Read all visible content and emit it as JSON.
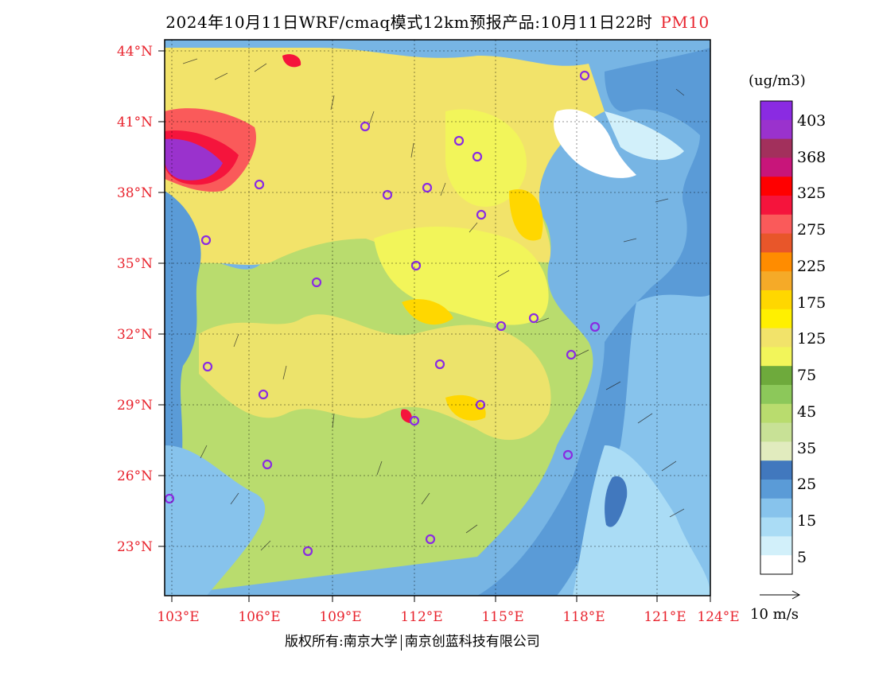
{
  "title": {
    "main": "2024年10月11日WRF/cmaq模式12km预报产品:10月11日22时",
    "pollutant": "PM10"
  },
  "map": {
    "lat_labels": [
      "44°N",
      "41°N",
      "38°N",
      "35°N",
      "32°N",
      "29°N",
      "26°N",
      "23°N"
    ],
    "lon_labels": [
      "103°E",
      "106°E",
      "109°E",
      "112°E",
      "115°E",
      "118°E",
      "121°E",
      "124°E"
    ]
  },
  "colorbar": {
    "unit": "(ug/m3)",
    "labels": [
      "403",
      "368",
      "325",
      "275",
      "225",
      "175",
      "125",
      "75",
      "45",
      "35",
      "25",
      "15",
      "5"
    ],
    "colors": [
      "#8a2be2",
      "#9a32cd",
      "#a2305c",
      "#c8157a",
      "#ff0000",
      "#f5143c",
      "#fa5a5a",
      "#e8562a",
      "#ff8c00",
      "#f5aa28",
      "#ffd700",
      "#fff000",
      "#f2e36a",
      "#f2f55a",
      "#6eaa3c",
      "#8cc85a",
      "#b9dc6e",
      "#c8e196",
      "#e1ebbe",
      "#4178be",
      "#5a9bd7",
      "#87c3ec",
      "#aadcf5",
      "#d2f0fa",
      "#ffffff"
    ]
  },
  "vector": {
    "label": "10 m/s"
  },
  "copyright": {
    "left": "版权所有:南京大学",
    "right": "南京创蓝科技有限公司"
  }
}
